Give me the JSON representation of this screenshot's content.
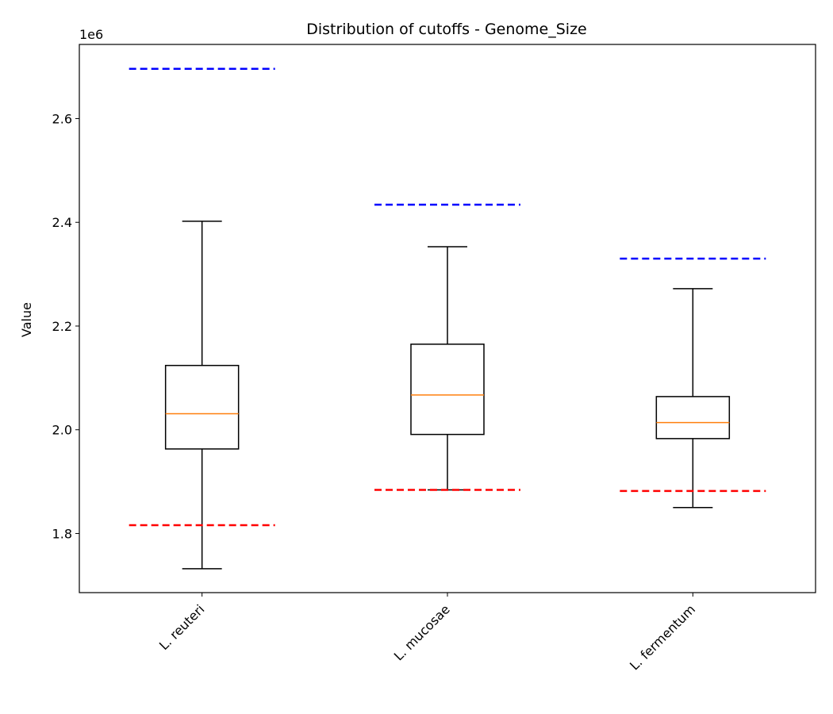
{
  "chart_data": {
    "type": "box",
    "title": "Distribution of cutoffs - Genome_Size",
    "ylabel": "Value",
    "y_offset_label": "1e6",
    "categories": [
      "L. reuteri",
      "L. mucosae",
      "L. fermentum"
    ],
    "whisker_low": [
      1.732,
      1.884,
      1.85
    ],
    "q1": [
      1.963,
      1.991,
      1.983
    ],
    "median": [
      2.031,
      2.067,
      2.014
    ],
    "q3": [
      2.124,
      2.165,
      2.064
    ],
    "whisker_high": [
      2.402,
      2.353,
      2.272
    ],
    "box_color": "#000000",
    "median_color": "#ff7f0e",
    "upper_cutoff": {
      "color": "#0000ff",
      "values": [
        2.696,
        2.434,
        2.33
      ]
    },
    "lower_cutoff": {
      "color": "#ff0000",
      "values": [
        1.816,
        1.884,
        1.882
      ]
    },
    "ylim": [
      1.686,
      2.743
    ],
    "yticks": [
      1.8,
      {
        "value": 2.0,
        "label": "2.0"
      },
      2.2,
      2.4,
      2.6
    ]
  }
}
